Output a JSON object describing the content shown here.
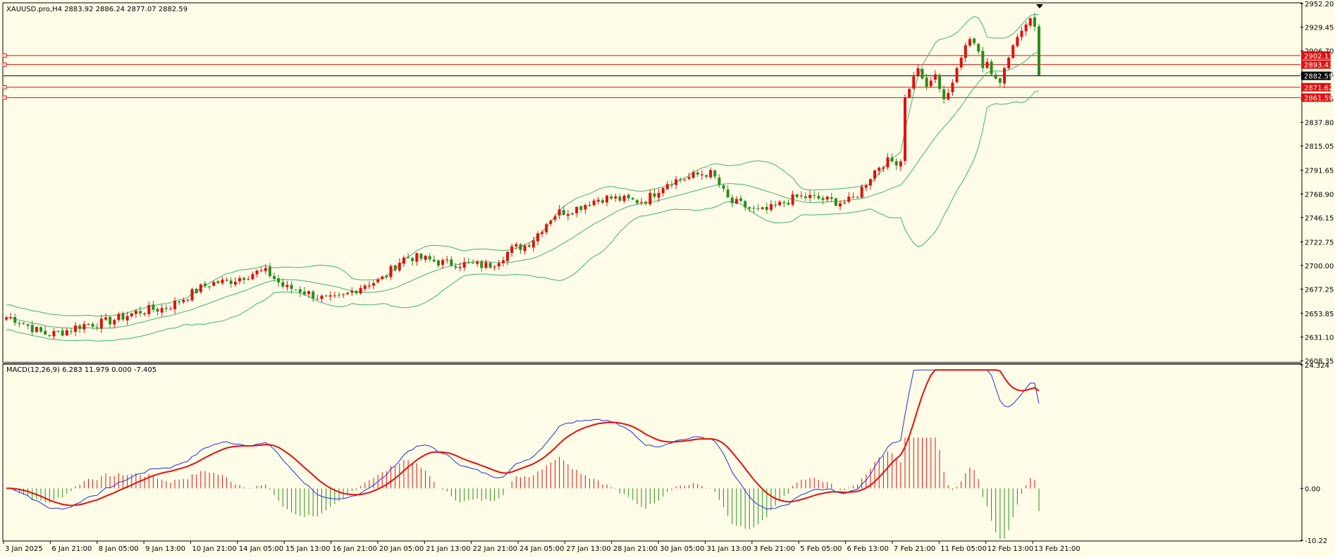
{
  "colors": {
    "background": "#FFFDE8",
    "bull": "#E01010",
    "bear": "#2E8B1E",
    "band": "#3CB371",
    "hline": "#E01010",
    "bidline": "#000000",
    "macd_main": "#2030E0",
    "macd_signal": "#E01010"
  },
  "header": {
    "text": "XAUUSD.pro,H4  2883.92 2886.24 2877.07 2882.59"
  },
  "macd": {
    "label": "MACD(12,26,9) 6.283 11.979 0.000 -7.405"
  },
  "chart_data": [
    {
      "type": "candlestick",
      "symbol": "XAUUSD.pro",
      "timeframe": "H4",
      "ylim": [
        2608.35,
        2952.2
      ],
      "price_ticks": [
        "2952.20",
        "2929.45",
        "2906.70",
        "2883.95",
        "2860.55",
        "2837.80",
        "2815.05",
        "2791.65",
        "2768.90",
        "2746.15",
        "2722.75",
        "2700.00",
        "2677.25",
        "2653.85",
        "2631.10",
        "2608.35"
      ],
      "time_labels": [
        "3 Jan 2025",
        "6 Jan 21:00",
        "8 Jan 05:00",
        "9 Jan 13:00",
        "10 Jan 21:00",
        "14 Jan 05:00",
        "15 Jan 13:00",
        "16 Jan 21:00",
        "20 Jan 05:00",
        "21 Jan 13:00",
        "22 Jan 21:00",
        "24 Jan 05:00",
        "27 Jan 13:00",
        "28 Jan 21:00",
        "30 Jan 05:00",
        "31 Jan 13:00",
        "3 Feb 21:00",
        "5 Feb 05:00",
        "6 Feb 13:00",
        "7 Feb 21:00",
        "11 Feb 05:00",
        "12 Feb 13:00",
        "13 Feb 21:00"
      ],
      "levels": [
        {
          "label": "2902.13",
          "value": 2902.13
        },
        {
          "label": "2893.43",
          "value": 2893.43
        },
        {
          "label": "2871.62",
          "value": 2871.62
        },
        {
          "label": "2861.59",
          "value": 2861.59
        }
      ],
      "bid": {
        "label": "2882.59",
        "value": 2882.59
      },
      "bollinger_bands": true,
      "grid": false
    },
    {
      "type": "macd",
      "params": "12,26,9",
      "ylim": [
        -10.22,
        24.324
      ],
      "ticks": [
        "24.324",
        "0.00",
        "-10.22"
      ]
    }
  ]
}
